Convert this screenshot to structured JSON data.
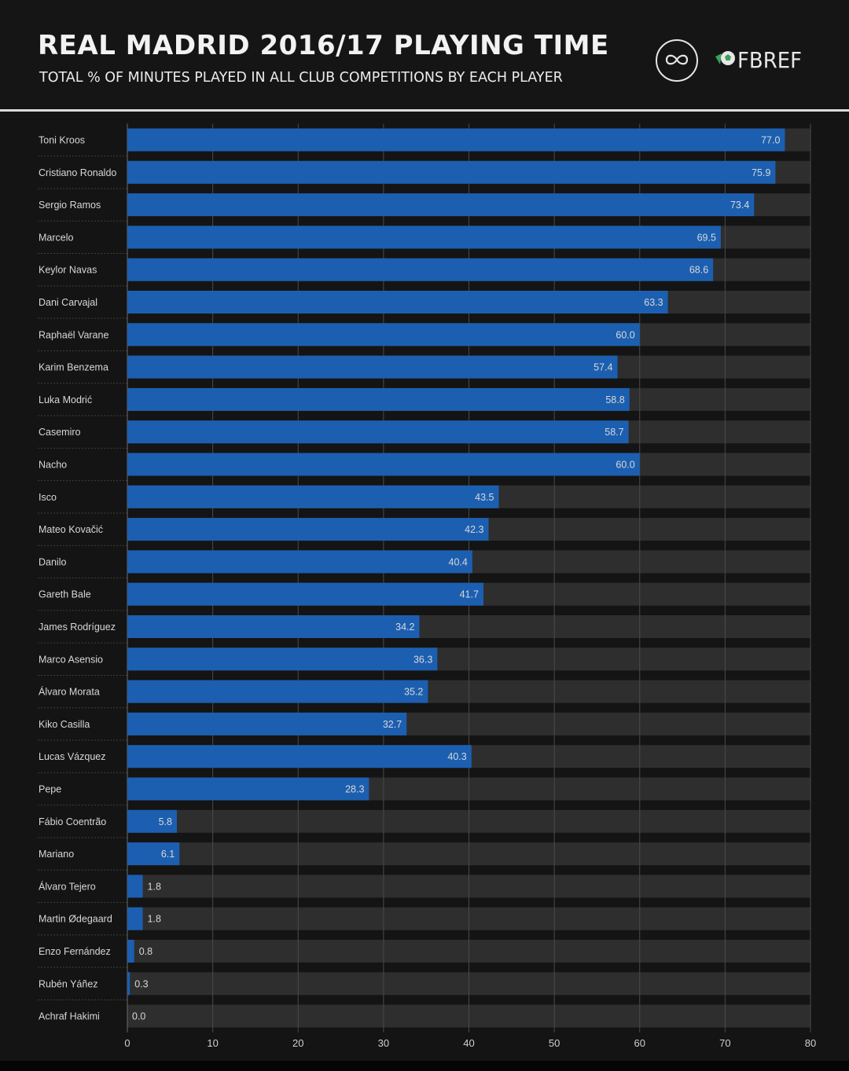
{
  "header": {
    "title": "REAL MADRID 2016/17 PLAYING TIME",
    "subtitle": "TOTAL % OF MINUTES PLAYED IN ALL CLUB COMPETITIONS BY EACH PLAYER",
    "brand_text": "FBREF"
  },
  "icons": {
    "infinity_logo": "infinity-icon",
    "fbref_logo": "soccer-ball-icon"
  },
  "colors": {
    "bar": "#1c5fb0",
    "track": "#2e2e2e",
    "background": "#151515",
    "brand_green": "#3aa25a"
  },
  "chart_data": {
    "type": "bar",
    "orientation": "horizontal",
    "title": "REAL MADRID 2016/17 PLAYING TIME",
    "subtitle": "TOTAL % OF MINUTES PLAYED IN ALL CLUB COMPETITIONS BY EACH PLAYER",
    "xlabel": "",
    "ylabel": "",
    "xlim": [
      0,
      80
    ],
    "xticks": [
      0,
      10,
      20,
      30,
      40,
      50,
      60,
      70,
      80
    ],
    "grid": true,
    "categories": [
      "Toni Kroos",
      "Cristiano Ronaldo",
      "Sergio Ramos",
      "Marcelo",
      "Keylor Navas",
      "Dani Carvajal",
      "Raphaël Varane",
      "Karim Benzema",
      "Luka Modrić",
      "Casemiro",
      "Nacho",
      "Isco",
      "Mateo Kovačić",
      "Danilo",
      "Gareth Bale",
      "James Rodríguez",
      "Marco Asensio",
      "Álvaro Morata",
      "Kiko Casilla",
      "Lucas Vázquez",
      "Pepe",
      "Fábio Coentrão",
      "Mariano",
      "Álvaro Tejero",
      "Martin Ødegaard",
      "Enzo Fernández",
      "Rubén Yáñez",
      "Achraf Hakimi"
    ],
    "values": [
      77.0,
      75.9,
      73.4,
      69.5,
      68.6,
      63.3,
      60.0,
      57.4,
      58.8,
      58.7,
      60.0,
      43.5,
      42.3,
      40.4,
      41.7,
      34.2,
      36.3,
      35.2,
      32.7,
      40.3,
      28.3,
      5.8,
      6.1,
      1.8,
      1.8,
      0.8,
      0.3,
      0.0
    ],
    "value_labels": [
      "77.0",
      "75.9",
      "73.4",
      "69.5",
      "68.6",
      "63.3",
      "60.0",
      "57.4",
      "58.8",
      "58.7",
      "60.0",
      "43.5",
      "42.3",
      "40.4",
      "41.7",
      "34.2",
      "36.3",
      "35.2",
      "32.7",
      "40.3",
      "28.3",
      "5.8",
      "6.1",
      "1.8",
      "1.8",
      "0.8",
      "0.3",
      "0.0"
    ]
  }
}
